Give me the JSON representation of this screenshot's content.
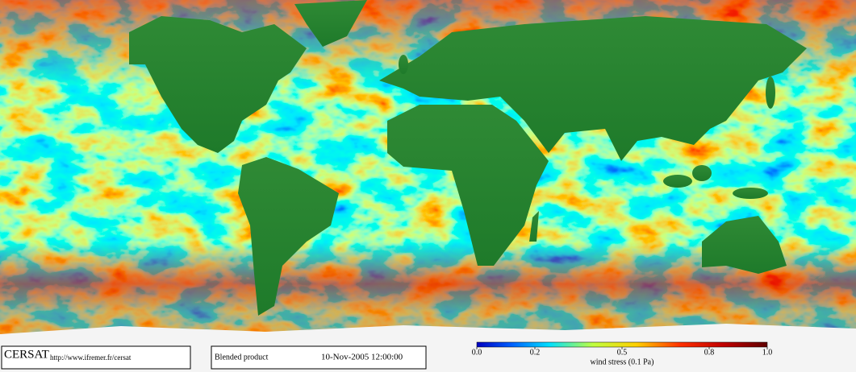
{
  "logo": "CERSAT",
  "url": "http://www.ifremer.fr/cersat",
  "product": "Blended product",
  "datetime": "10-Nov-2005 12:00:00",
  "colorbar": {
    "label": "wind stress (0.1 Pa)",
    "lim": [
      0,
      1
    ],
    "ticks": [
      {
        "value": 0,
        "label": "0.0"
      },
      0.2,
      0.5,
      0.8,
      {
        "value": 1,
        "label": "1.0"
      }
    ]
  }
}
